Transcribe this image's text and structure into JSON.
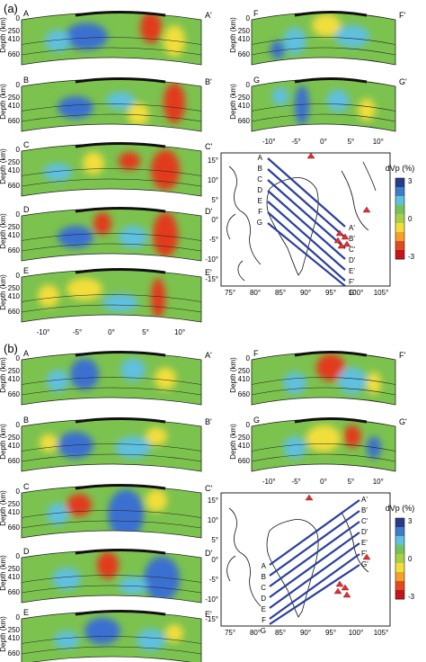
{
  "panels": [
    {
      "label": "(a)",
      "sections": [
        {
          "start": "A",
          "end": "A'"
        },
        {
          "start": "B",
          "end": "B'"
        },
        {
          "start": "C",
          "end": "C'"
        },
        {
          "start": "D",
          "end": "D'"
        },
        {
          "start": "E",
          "end": "E'"
        },
        {
          "start": "F",
          "end": "F'"
        },
        {
          "start": "G",
          "end": "G'"
        }
      ]
    },
    {
      "label": "(b)",
      "sections": [
        {
          "start": "A",
          "end": "A'"
        },
        {
          "start": "B",
          "end": "B'"
        },
        {
          "start": "C",
          "end": "C'"
        },
        {
          "start": "D",
          "end": "D'"
        },
        {
          "start": "E",
          "end": "E'"
        },
        {
          "start": "F",
          "end": "F'"
        },
        {
          "start": "G",
          "end": "G'"
        }
      ]
    }
  ],
  "depth_axis": {
    "label": "Depth (km)",
    "ticks": [
      "0",
      "250",
      "410",
      "660"
    ]
  },
  "distance_ticks": [
    "-10°",
    "-5°",
    "0°",
    "5°",
    "10°"
  ],
  "map": {
    "x_ticks": [
      "75°",
      "80°",
      "85°",
      "90°",
      "95°",
      "100°",
      "105°"
    ],
    "y_ticks": [
      "15°",
      "10°",
      "5°",
      "0°",
      "-5°",
      "-10°",
      "-15°"
    ]
  },
  "colorbar": {
    "title": "dVp (%)",
    "ticks": [
      "3",
      "0",
      "-3"
    ],
    "colors": [
      "#2a3a8c",
      "#3d7ec8",
      "#5fc0e0",
      "#78c25a",
      "#a8d046",
      "#f2de3a",
      "#f5a02a",
      "#e24a1e",
      "#c4151a"
    ]
  },
  "colors": {
    "background": "#7cc24e",
    "fast": "#3a6fd0",
    "slow": "#e23a1a",
    "profile_line": "#2b3f9e",
    "volcano": "#e23030"
  }
}
